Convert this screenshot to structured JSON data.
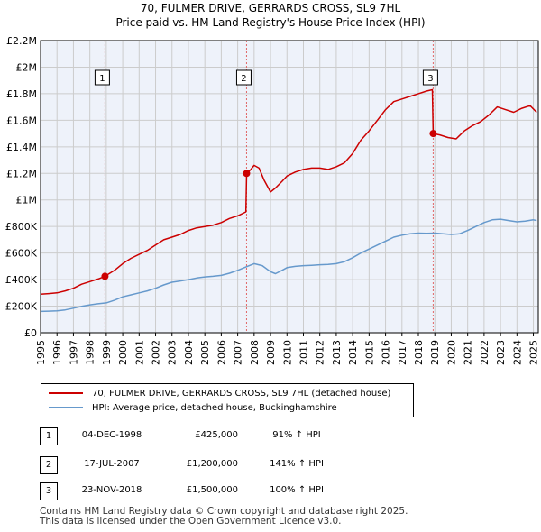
{
  "title_line1": "70, FULMER DRIVE, GERRARDS CROSS, SL9 7HL",
  "title_line2": "Price paid vs. HM Land Registry's House Price Index (HPI)",
  "colors": {
    "property": "#cc0000",
    "hpi": "#6699cc",
    "grid": "#cccccc",
    "plot_bg": "#eef2fa",
    "marker_line": "#e06666"
  },
  "legend": {
    "property_label": "70, FULMER DRIVE, GERRARDS CROSS, SL9 7HL (detached house)",
    "hpi_label": "HPI: Average price, detached house, Buckinghamshire"
  },
  "transactions": [
    {
      "num": "1",
      "date": "04-DEC-1998",
      "price": "£425,000",
      "hpi": "91% ↑ HPI"
    },
    {
      "num": "2",
      "date": "17-JUL-2007",
      "price": "£1,200,000",
      "hpi": "141% ↑ HPI"
    },
    {
      "num": "3",
      "date": "23-NOV-2018",
      "price": "£1,500,000",
      "hpi": "100% ↑ HPI"
    }
  ],
  "footer_line1": "Contains HM Land Registry data © Crown copyright and database right 2025.",
  "footer_line2": "This data is licensed under the Open Government Licence v3.0.",
  "chart_data": {
    "type": "line",
    "title": "70, FULMER DRIVE, GERRARDS CROSS, SL9 7HL — Price paid vs. HM Land Registry's House Price Index (HPI)",
    "xlabel": "",
    "ylabel": "",
    "xlim": [
      1995,
      2025.3
    ],
    "ylim": [
      0,
      2200000
    ],
    "yticks": [
      0,
      200000,
      400000,
      600000,
      800000,
      1000000,
      1200000,
      1400000,
      1600000,
      1800000,
      2000000,
      2200000
    ],
    "ytick_labels": [
      "£0",
      "£200K",
      "£400K",
      "£600K",
      "£800K",
      "£1M",
      "£1.2M",
      "£1.4M",
      "£1.6M",
      "£1.8M",
      "£2M",
      "£2.2M"
    ],
    "xticks": [
      1995,
      1996,
      1997,
      1998,
      1999,
      2000,
      2001,
      2002,
      2003,
      2004,
      2005,
      2006,
      2007,
      2008,
      2009,
      2010,
      2011,
      2012,
      2013,
      2014,
      2015,
      2016,
      2017,
      2018,
      2019,
      2020,
      2021,
      2022,
      2023,
      2024,
      2025
    ],
    "grid": true,
    "sales": [
      {
        "label": "1",
        "x": 1998.92,
        "y": 425000
      },
      {
        "label": "2",
        "x": 2007.54,
        "y": 1200000
      },
      {
        "label": "3",
        "x": 2018.9,
        "y": 1500000
      }
    ],
    "series": [
      {
        "name": "70, FULMER DRIVE, GERRARDS CROSS, SL9 7HL (detached house)",
        "x": [
          1995,
          1995.5,
          1996,
          1996.5,
          1997,
          1997.5,
          1998,
          1998.5,
          1998.92,
          1999.5,
          2000,
          2000.5,
          2001,
          2001.5,
          2002,
          2002.5,
          2003,
          2003.5,
          2004,
          2004.5,
          2005,
          2005.5,
          2006,
          2006.5,
          2007,
          2007.5,
          2007.54,
          2007.8,
          2008,
          2008.3,
          2008.6,
          2009,
          2009.3,
          2009.7,
          2010,
          2010.5,
          2011,
          2011.5,
          2012,
          2012.5,
          2013,
          2013.5,
          2014,
          2014.5,
          2015,
          2015.5,
          2016,
          2016.5,
          2017,
          2017.5,
          2018,
          2018.5,
          2018.85,
          2018.9,
          2019.3,
          2019.8,
          2020.3,
          2020.8,
          2021.3,
          2021.8,
          2022.3,
          2022.8,
          2023.3,
          2023.8,
          2024.3,
          2024.8,
          2025.2
        ],
        "values": [
          290000,
          295000,
          300000,
          315000,
          335000,
          365000,
          385000,
          405000,
          425000,
          470000,
          520000,
          560000,
          590000,
          620000,
          660000,
          700000,
          720000,
          740000,
          770000,
          790000,
          800000,
          810000,
          830000,
          860000,
          880000,
          910000,
          1200000,
          1230000,
          1260000,
          1240000,
          1150000,
          1060000,
          1090000,
          1140000,
          1180000,
          1210000,
          1230000,
          1240000,
          1240000,
          1230000,
          1250000,
          1280000,
          1350000,
          1450000,
          1520000,
          1600000,
          1680000,
          1740000,
          1760000,
          1780000,
          1800000,
          1820000,
          1830000,
          1500000,
          1490000,
          1470000,
          1460000,
          1520000,
          1560000,
          1590000,
          1640000,
          1700000,
          1680000,
          1660000,
          1690000,
          1710000,
          1660000
        ]
      },
      {
        "name": "HPI: Average price, detached house, Buckinghamshire",
        "x": [
          1995,
          1995.5,
          1996,
          1996.5,
          1997,
          1997.5,
          1998,
          1998.5,
          1999,
          1999.5,
          2000,
          2000.5,
          2001,
          2001.5,
          2002,
          2002.5,
          2003,
          2003.5,
          2004,
          2004.5,
          2005,
          2005.5,
          2006,
          2006.5,
          2007,
          2007.5,
          2008,
          2008.5,
          2009,
          2009.3,
          2009.7,
          2010,
          2010.5,
          2011,
          2011.5,
          2012,
          2012.5,
          2013,
          2013.5,
          2014,
          2014.5,
          2015,
          2015.5,
          2016,
          2016.5,
          2017,
          2017.5,
          2018,
          2018.5,
          2019,
          2019.5,
          2020,
          2020.5,
          2021,
          2021.5,
          2022,
          2022.5,
          2023,
          2023.5,
          2024,
          2024.5,
          2025,
          2025.2
        ],
        "values": [
          160000,
          162000,
          165000,
          172000,
          185000,
          198000,
          210000,
          218000,
          225000,
          245000,
          270000,
          285000,
          300000,
          315000,
          335000,
          360000,
          380000,
          390000,
          400000,
          412000,
          420000,
          425000,
          432000,
          448000,
          470000,
          495000,
          520000,
          505000,
          460000,
          445000,
          470000,
          490000,
          500000,
          505000,
          508000,
          512000,
          515000,
          520000,
          535000,
          565000,
          600000,
          630000,
          660000,
          690000,
          720000,
          735000,
          745000,
          750000,
          748000,
          750000,
          745000,
          740000,
          745000,
          770000,
          800000,
          830000,
          850000,
          855000,
          845000,
          835000,
          840000,
          850000,
          845000
        ]
      }
    ]
  }
}
